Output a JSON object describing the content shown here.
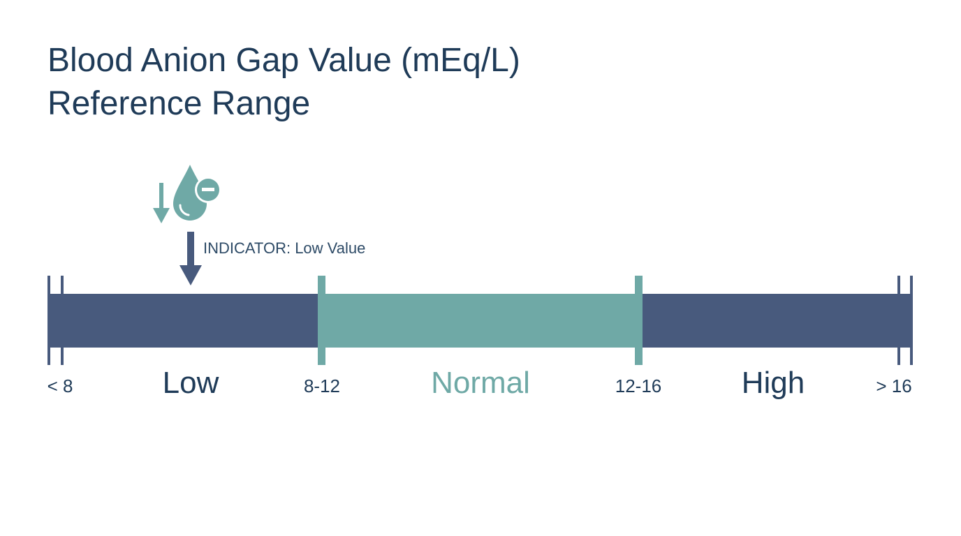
{
  "title": {
    "line1": "Blood Anion Gap Value (mEq/L)",
    "line2": "Reference Range"
  },
  "indicator": {
    "label": "INDICATOR: Low Value",
    "zone": "Low",
    "icons": [
      "down-arrow-icon",
      "blood-drop-minus-icon",
      "pointer-arrow-icon"
    ]
  },
  "scale": {
    "zones": [
      {
        "name": "Low",
        "color": "#485a7d",
        "label_color": "#1f3b58"
      },
      {
        "name": "Normal",
        "color": "#6fa9a6",
        "label_color": "#6fa9a6"
      },
      {
        "name": "High",
        "color": "#485a7d",
        "label_color": "#1f3b58"
      }
    ],
    "tick_labels": [
      "< 8",
      "8-12",
      "12-16",
      "> 16"
    ]
  },
  "colors": {
    "title": "#1f3b58",
    "dark_zone": "#485a7d",
    "normal_zone": "#6fa9a6",
    "text": "#1f3b58"
  }
}
